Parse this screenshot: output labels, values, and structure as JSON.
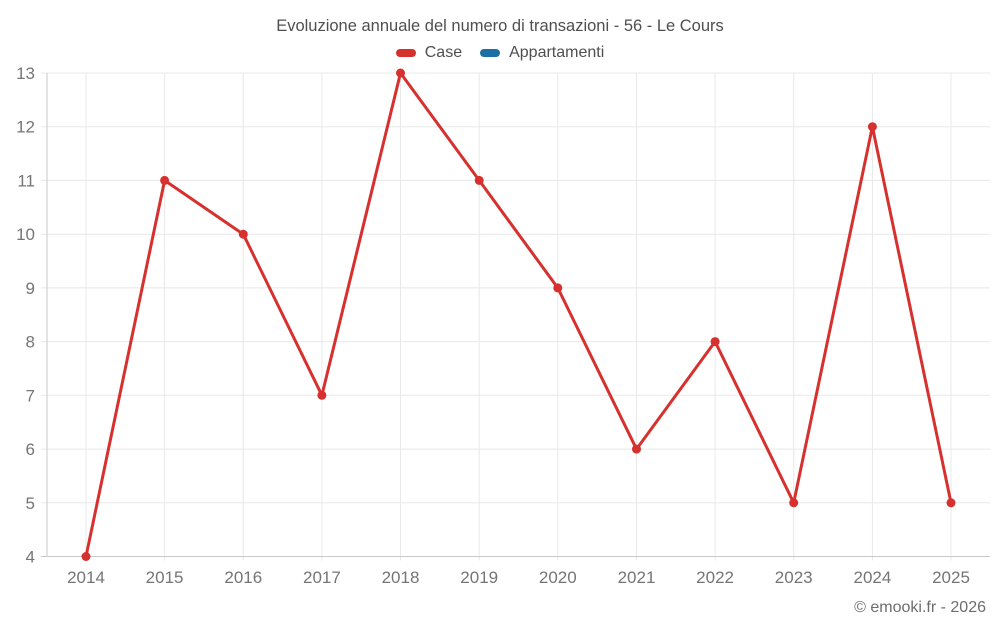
{
  "title": "Evoluzione annuale del numero di transazioni - 56 - Le Cours",
  "watermark": "© emooki.fr - 2026",
  "colors": {
    "case_series": "#d6312e",
    "appartamenti_series": "#1c6fa4",
    "grid": "#e8e8e8",
    "axis": "#c9c9c9",
    "tick_label": "#757575",
    "title_text": "#4f4f4f",
    "watermark_text": "#6d6d6d",
    "background": "#ffffff"
  },
  "chart_data": {
    "type": "line",
    "title": "Evoluzione annuale del numero di transazioni - 56 - Le Cours",
    "categories": [
      "2014",
      "2015",
      "2016",
      "2017",
      "2018",
      "2019",
      "2020",
      "2021",
      "2022",
      "2023",
      "2024",
      "2025"
    ],
    "series": [
      {
        "name": "Case",
        "color": "#d6312e",
        "values": [
          4,
          11,
          10,
          7,
          13,
          11,
          9,
          6,
          8,
          5,
          12,
          5
        ]
      },
      {
        "name": "Appartamenti",
        "color": "#1c6fa4",
        "values": []
      }
    ],
    "xlabel": "",
    "ylabel": "",
    "ylim": [
      4,
      13
    ],
    "ytick_step": 1,
    "grid": true,
    "legend_position": "top",
    "marker": "circle"
  }
}
